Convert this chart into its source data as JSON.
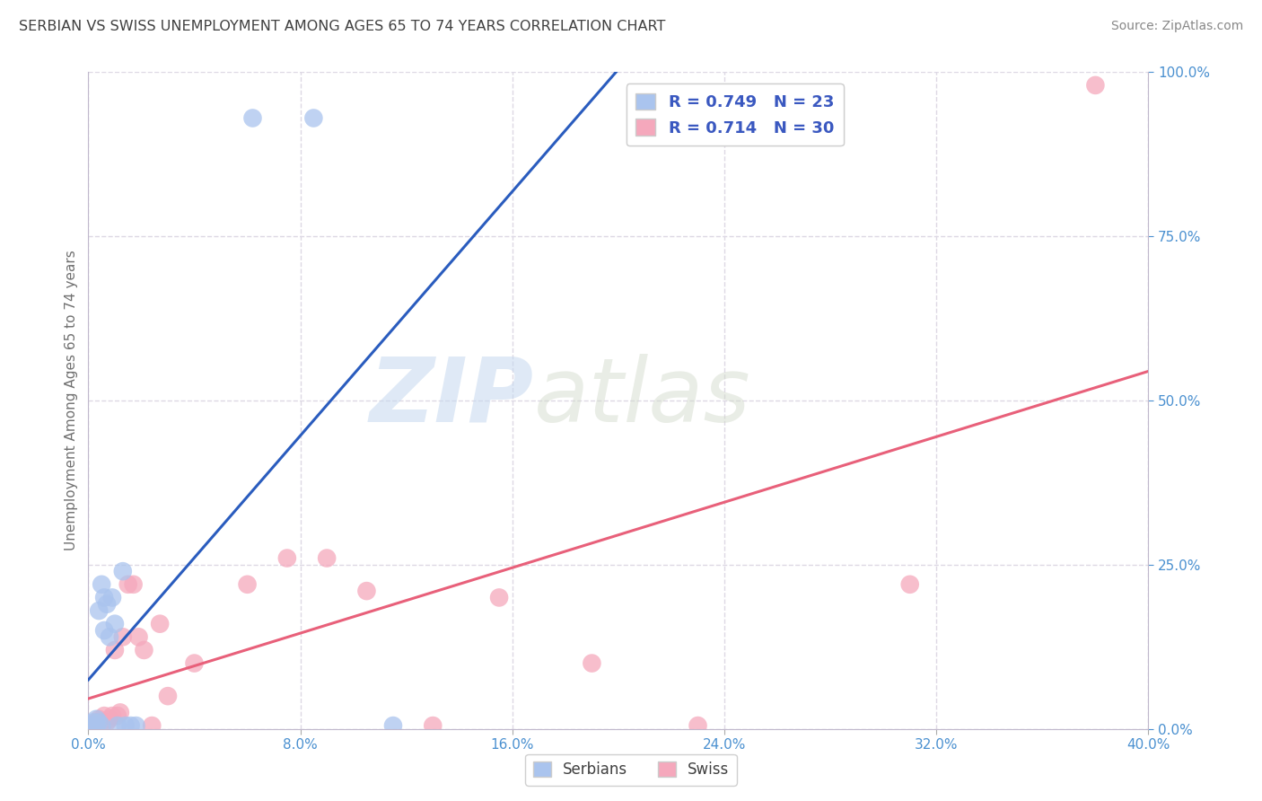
{
  "title": "SERBIAN VS SWISS UNEMPLOYMENT AMONG AGES 65 TO 74 YEARS CORRELATION CHART",
  "source": "Source: ZipAtlas.com",
  "ylabel": "Unemployment Among Ages 65 to 74 years",
  "xlim": [
    0.0,
    0.4
  ],
  "ylim": [
    0.0,
    1.0
  ],
  "xticks": [
    0.0,
    0.08,
    0.16,
    0.24,
    0.32,
    0.4
  ],
  "xticklabels": [
    "0.0%",
    "8.0%",
    "16.0%",
    "24.0%",
    "32.0%",
    "40.0%"
  ],
  "yticks": [
    0.0,
    0.25,
    0.5,
    0.75,
    1.0
  ],
  "yticklabels": [
    "0.0%",
    "25.0%",
    "50.0%",
    "75.0%",
    "100.0%"
  ],
  "serbian_R": 0.749,
  "serbian_N": 23,
  "swiss_R": 0.714,
  "swiss_N": 30,
  "serbian_color": "#aac4ee",
  "swiss_color": "#f5a8bc",
  "serbian_line_color": "#2a5cbe",
  "swiss_line_color": "#e8607a",
  "watermark_zip": "ZIP",
  "watermark_atlas": "atlas",
  "background_color": "#ffffff",
  "grid_color": "#ddd8e4",
  "title_color": "#404040",
  "axis_label_color": "#707070",
  "tick_color": "#4a90d0",
  "serbian_x": [
    0.001,
    0.002,
    0.002,
    0.003,
    0.003,
    0.004,
    0.004,
    0.005,
    0.005,
    0.006,
    0.006,
    0.007,
    0.008,
    0.009,
    0.01,
    0.011,
    0.013,
    0.014,
    0.016,
    0.018,
    0.062,
    0.085,
    0.115
  ],
  "serbian_y": [
    0.005,
    0.005,
    0.01,
    0.005,
    0.015,
    0.01,
    0.18,
    0.005,
    0.22,
    0.15,
    0.2,
    0.19,
    0.14,
    0.2,
    0.16,
    0.005,
    0.24,
    0.005,
    0.005,
    0.005,
    0.93,
    0.93,
    0.005
  ],
  "swiss_x": [
    0.002,
    0.003,
    0.004,
    0.005,
    0.006,
    0.007,
    0.008,
    0.009,
    0.01,
    0.011,
    0.012,
    0.013,
    0.015,
    0.017,
    0.019,
    0.021,
    0.024,
    0.027,
    0.03,
    0.04,
    0.06,
    0.075,
    0.09,
    0.105,
    0.13,
    0.155,
    0.19,
    0.23,
    0.31,
    0.38
  ],
  "swiss_y": [
    0.005,
    0.01,
    0.015,
    0.01,
    0.02,
    0.01,
    0.015,
    0.02,
    0.12,
    0.02,
    0.025,
    0.14,
    0.22,
    0.22,
    0.14,
    0.12,
    0.005,
    0.16,
    0.05,
    0.1,
    0.22,
    0.26,
    0.26,
    0.21,
    0.005,
    0.2,
    0.1,
    0.005,
    0.22,
    0.98
  ],
  "serbian_line_x": [
    0.0,
    0.115
  ],
  "swiss_line_x": [
    0.0,
    0.4
  ]
}
